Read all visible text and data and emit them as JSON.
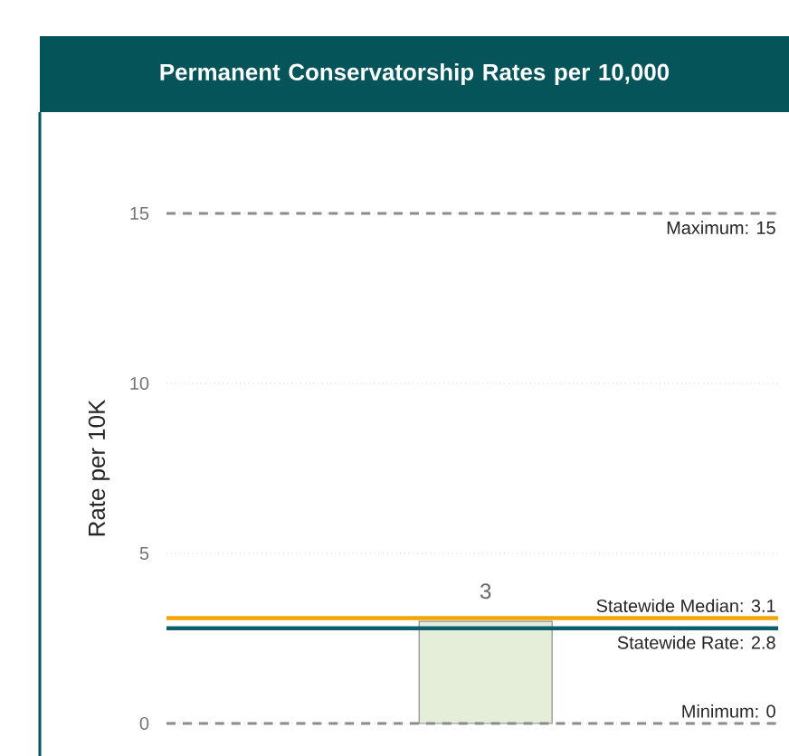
{
  "chart_data": {
    "type": "bar",
    "title": "Permanent Conservatorship Rates per 10,000",
    "ylabel": "Rate per 10K",
    "categories": [
      null
    ],
    "values": [
      3
    ],
    "color": "#e5eed8",
    "data_labels": true,
    "ylim": [
      0,
      15
    ],
    "yticks": [
      0,
      5,
      10,
      15
    ],
    "grid": "y",
    "ref_lines": [
      {
        "axis": "y",
        "value": 15,
        "label": "Maximum: 15",
        "color": "#8c8c8c",
        "line_style": "dashed"
      },
      {
        "axis": "y",
        "value": 3.1,
        "label": "Statewide Median: 3.1",
        "color": "#f5a500",
        "line_style": "solid"
      },
      {
        "axis": "y",
        "value": 2.8,
        "label": "Statewide Rate: 2.8",
        "color": "#0e5f6e",
        "line_style": "solid"
      },
      {
        "axis": "y",
        "value": 0,
        "label": "Minimum: 0",
        "color": "#8c8c8c",
        "line_style": "dashed"
      }
    ]
  }
}
